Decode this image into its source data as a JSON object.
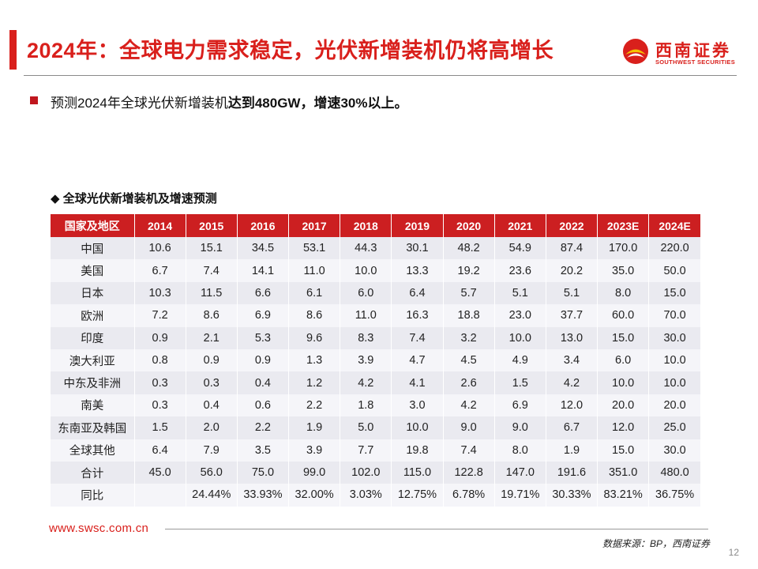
{
  "header": {
    "title": "2024年：全球电力需求稳定，光伏新增装机仍将高增长"
  },
  "logo": {
    "cn": "西南证券",
    "en": "SOUTHWEST SECURITIES",
    "accent_color": "#d9201c"
  },
  "bullet": {
    "text_prefix": "预测2024年全球光伏新增装机",
    "text_bold": "达到480GW，增速30%以上。"
  },
  "table": {
    "caption": "◆ 全球光伏新增装机及增速预测",
    "columns": [
      "国家及地区",
      "2014",
      "2015",
      "2016",
      "2017",
      "2018",
      "2019",
      "2020",
      "2021",
      "2022",
      "2023E",
      "2024E"
    ],
    "rows": [
      [
        "中国",
        "10.6",
        "15.1",
        "34.5",
        "53.1",
        "44.3",
        "30.1",
        "48.2",
        "54.9",
        "87.4",
        "170.0",
        "220.0"
      ],
      [
        "美国",
        "6.7",
        "7.4",
        "14.1",
        "11.0",
        "10.0",
        "13.3",
        "19.2",
        "23.6",
        "20.2",
        "35.0",
        "50.0"
      ],
      [
        "日本",
        "10.3",
        "11.5",
        "6.6",
        "6.1",
        "6.0",
        "6.4",
        "5.7",
        "5.1",
        "5.1",
        "8.0",
        "15.0"
      ],
      [
        "欧洲",
        "7.2",
        "8.6",
        "6.9",
        "8.6",
        "11.0",
        "16.3",
        "18.8",
        "23.0",
        "37.7",
        "60.0",
        "70.0"
      ],
      [
        "印度",
        "0.9",
        "2.1",
        "5.3",
        "9.6",
        "8.3",
        "7.4",
        "3.2",
        "10.0",
        "13.0",
        "15.0",
        "30.0"
      ],
      [
        "澳大利亚",
        "0.8",
        "0.9",
        "0.9",
        "1.3",
        "3.9",
        "4.7",
        "4.5",
        "4.9",
        "3.4",
        "6.0",
        "10.0"
      ],
      [
        "中东及非洲",
        "0.3",
        "0.3",
        "0.4",
        "1.2",
        "4.2",
        "4.1",
        "2.6",
        "1.5",
        "4.2",
        "10.0",
        "10.0"
      ],
      [
        "南美",
        "0.3",
        "0.4",
        "0.6",
        "2.2",
        "1.8",
        "3.0",
        "4.2",
        "6.9",
        "12.0",
        "20.0",
        "20.0"
      ],
      [
        "东南亚及韩国",
        "1.5",
        "2.0",
        "2.2",
        "1.9",
        "5.0",
        "10.0",
        "9.0",
        "9.0",
        "6.7",
        "12.0",
        "25.0"
      ],
      [
        "全球其他",
        "6.4",
        "7.9",
        "3.5",
        "3.9",
        "7.7",
        "19.8",
        "7.4",
        "8.0",
        "1.9",
        "15.0",
        "30.0"
      ],
      [
        "合计",
        "45.0",
        "56.0",
        "75.0",
        "99.0",
        "102.0",
        "115.0",
        "122.8",
        "147.0",
        "191.6",
        "351.0",
        "480.0"
      ],
      [
        "同比",
        "",
        "24.44%",
        "33.93%",
        "32.00%",
        "3.03%",
        "12.75%",
        "6.78%",
        "19.71%",
        "30.33%",
        "83.21%",
        "36.75%"
      ]
    ]
  },
  "footer": {
    "url": "www.swsc.com.cn",
    "source": "数据来源：BP，西南证券",
    "page_number": "12"
  }
}
